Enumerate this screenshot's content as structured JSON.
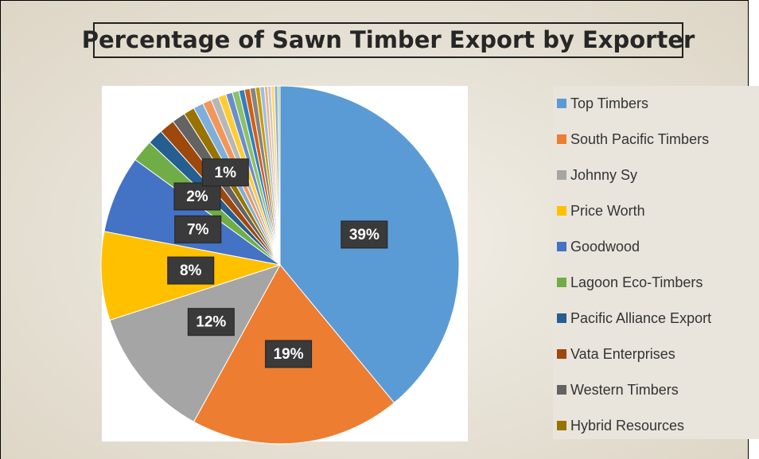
{
  "chart_data": {
    "type": "pie",
    "title": "Percentage of Sawn Timber Export by Exporter",
    "categories": [
      "Top Timbers",
      "South Pacific Timbers",
      "Johnny Sy",
      "Price Worth",
      "Goodwood",
      "Lagoon Eco-Timbers",
      "Pacific Alliance Export",
      "Vata Enterprises",
      "Western Timbers",
      "Hybrid Resources",
      null,
      null,
      null,
      null,
      null,
      null,
      null,
      null,
      null,
      null,
      null,
      null,
      null,
      null,
      null,
      null
    ],
    "values": [
      39,
      19,
      12,
      8,
      7,
      2,
      1.4,
      1.4,
      1.2,
      1.0,
      0.9,
      0.8,
      0.7,
      0.7,
      0.6,
      0.6,
      0.5,
      0.5,
      0.5,
      0.4,
      0.4,
      0.3,
      0.3,
      0.3,
      0.3,
      0.2
    ],
    "value_labels": [
      "39%",
      "19%",
      "12%",
      "8%",
      "7%",
      "2%",
      null,
      null,
      null,
      "1%",
      null,
      null,
      null,
      null,
      null,
      null,
      null,
      null,
      null,
      null,
      null,
      null,
      null,
      null,
      null,
      null
    ],
    "colors": [
      "#5b9bd5",
      "#ed7d31",
      "#a5a5a5",
      "#ffc000",
      "#4472c4",
      "#70ad47",
      "#255e91",
      "#9e480e",
      "#636363",
      "#997300",
      "#7cafdd",
      "#f1975a",
      "#b7b7b7",
      "#ffcd33",
      "#698ed0",
      "#8cc168",
      "#327dc2",
      "#d26012",
      "#848484",
      "#cc9a00",
      "#97c0e6",
      "#f4b183",
      "#c9c9c9",
      "#ffd966",
      "#8faadc",
      "#a9d18e"
    ],
    "legend": "right"
  }
}
